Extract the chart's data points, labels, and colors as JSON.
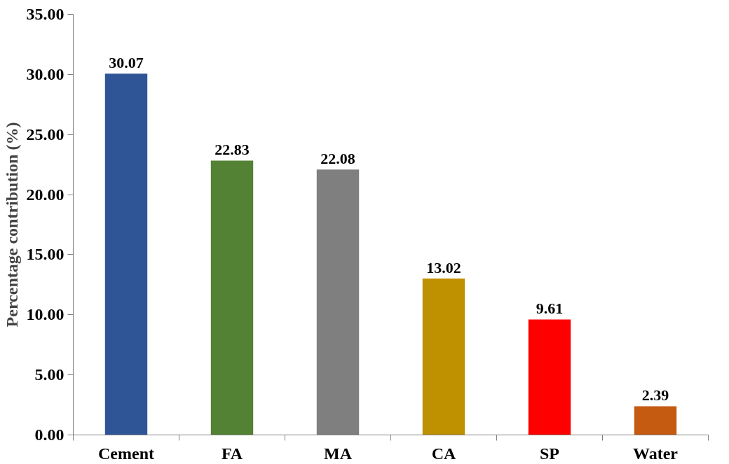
{
  "chart_data": {
    "type": "bar",
    "ylabel": "Percentage contribution (%)",
    "categories": [
      "Cement",
      "FA",
      "MA",
      "CA",
      "SP",
      "Water"
    ],
    "values": [
      30.07,
      22.83,
      22.08,
      13.02,
      9.61,
      2.39
    ],
    "colors": [
      "#2f5597",
      "#548235",
      "#7f7f7f",
      "#bf9000",
      "#ff0000",
      "#c55a11"
    ],
    "ylim": [
      0,
      35
    ],
    "yticks": [
      {
        "value": 0,
        "label": "0.00"
      },
      {
        "value": 5,
        "label": "5.00"
      },
      {
        "value": 10,
        "label": "10.00"
      },
      {
        "value": 15,
        "label": "15.00"
      },
      {
        "value": 20,
        "label": "20.00"
      },
      {
        "value": 25,
        "label": "25.00"
      },
      {
        "value": 30,
        "label": "30.00"
      },
      {
        "value": 35,
        "label": "35.00"
      }
    ],
    "grid": false,
    "data_labels": true
  }
}
